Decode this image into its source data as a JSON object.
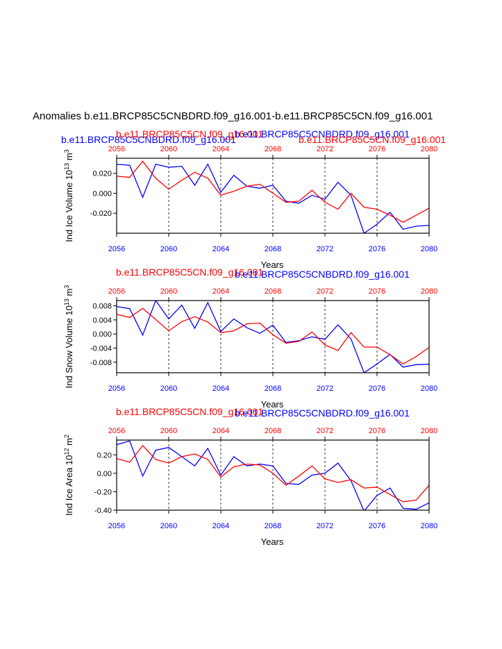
{
  "main_title": "Anomalies b.e11.BRCP85C5CNBDRD.f09_g16.001-b.e11.BRCP85C5CN.f09_g16.001",
  "colors": {
    "series_a": "#0000ff",
    "series_b": "#ff0000",
    "axis": "#000000",
    "grid": "#000000"
  },
  "chart_data": [
    {
      "type": "line",
      "panel_labels": {
        "left": "b.e11.BRCP85C5CNBDRD.f09_g16.001",
        "mid": "b.e11.BRCP85C5CN.f09_g16.001",
        "mid_overlay": "b.e11.BRCP85C5CNBDRD.f09_g16.001",
        "right": "b.e11.BRCP85C5CN.f09_g16.001"
      },
      "ylabel": {
        "base": "Ind Ice Volume 10",
        "exp": "13",
        "unit": " m",
        "unit_exp": "3"
      },
      "xlabel": "Years",
      "xlim": [
        2056,
        2080
      ],
      "ylim": [
        -0.04,
        0.035
      ],
      "xticks": [
        2056,
        2060,
        2064,
        2068,
        2072,
        2076,
        2080
      ],
      "grid_x": [
        2060,
        2064,
        2068,
        2072,
        2076
      ],
      "yticks": [
        -0.02,
        0.0,
        0.02
      ],
      "ytick_labels": [
        "-0.020",
        "0.000",
        "0.020"
      ],
      "x": [
        2056,
        2057,
        2058,
        2059,
        2060,
        2061,
        2062,
        2063,
        2064,
        2065,
        2066,
        2067,
        2068,
        2069,
        2070,
        2071,
        2072,
        2073,
        2074,
        2075,
        2076,
        2077,
        2078,
        2079,
        2080
      ],
      "series": [
        {
          "name": "b.e11.BRCP85C5CNBDRD.f09_g16.001",
          "color": "#0000ff",
          "values": [
            0.029,
            0.028,
            -0.004,
            0.029,
            0.026,
            0.027,
            0.008,
            0.029,
            0.001,
            0.018,
            0.007,
            0.005,
            0.008,
            -0.008,
            -0.01,
            -0.002,
            -0.006,
            0.011,
            -0.002,
            -0.04,
            -0.031,
            -0.019,
            -0.036,
            -0.033,
            -0.032
          ]
        },
        {
          "name": "b.e11.BRCP85C5CN.f09_g16.001",
          "color": "#ff0000",
          "values": [
            0.017,
            0.016,
            0.032,
            0.015,
            0.004,
            0.013,
            0.021,
            0.015,
            -0.002,
            0.002,
            0.007,
            0.009,
            0.0,
            -0.009,
            -0.008,
            0.003,
            -0.009,
            -0.016,
            0.0,
            -0.014,
            -0.016,
            -0.022,
            -0.029,
            -0.022,
            -0.015
          ]
        }
      ]
    },
    {
      "type": "line",
      "panel_labels": {
        "left": "",
        "mid": "b.e11.BRCP85C5CN.f09_g16.001",
        "mid_overlay": "b.e11.BRCP85C5CNBDRD.f09_g16.001",
        "right": ""
      },
      "ylabel": {
        "base": "Ind Snow Volume 10",
        "exp": "13",
        "unit": " m",
        "unit_exp": "3"
      },
      "xlabel": "Years",
      "xlim": [
        2056,
        2080
      ],
      "ylim": [
        -0.011,
        0.0095
      ],
      "xticks": [
        2056,
        2060,
        2064,
        2068,
        2072,
        2076,
        2080
      ],
      "grid_x": [
        2060,
        2064,
        2068,
        2072,
        2076
      ],
      "yticks": [
        -0.008,
        -0.004,
        0.0,
        0.004,
        0.008
      ],
      "ytick_labels": [
        "-0.008",
        "-0.004",
        "0.000",
        "0.004",
        "0.008"
      ],
      "x": [
        2056,
        2057,
        2058,
        2059,
        2060,
        2061,
        2062,
        2063,
        2064,
        2065,
        2066,
        2067,
        2068,
        2069,
        2070,
        2071,
        2072,
        2073,
        2074,
        2075,
        2076,
        2077,
        2078,
        2079,
        2080
      ],
      "series": [
        {
          "name": "b.e11.BRCP85C5CNBDRD.f09_g16.001",
          "color": "#0000ff",
          "values": [
            0.0078,
            0.0072,
            -0.0003,
            0.0095,
            0.0043,
            0.0082,
            0.0016,
            0.0089,
            0.0007,
            0.0043,
            0.0018,
            0.0002,
            0.0025,
            -0.0024,
            -0.0019,
            -0.0008,
            -0.0015,
            0.0026,
            -0.0014,
            -0.011,
            -0.0085,
            -0.0058,
            -0.0094,
            -0.0087,
            -0.0086
          ]
        },
        {
          "name": "b.e11.BRCP85C5CN.f09_g16.001",
          "color": "#ff0000",
          "values": [
            0.0056,
            0.0047,
            0.0073,
            0.0041,
            0.0009,
            0.0035,
            0.0049,
            0.0034,
            0.0004,
            0.0009,
            0.0029,
            0.0031,
            -0.0002,
            -0.0026,
            -0.0021,
            0.0006,
            -0.0031,
            -0.0047,
            0.0004,
            -0.0037,
            -0.0037,
            -0.0059,
            -0.0085,
            -0.0064,
            -0.0038
          ]
        }
      ]
    },
    {
      "type": "line",
      "panel_labels": {
        "left": "",
        "mid": "b.e11.BRCP85C5CN.f09_g16.001",
        "mid_overlay": "b.e11.BRCP85C5CNBDRD.f09_g16.001",
        "right": ""
      },
      "ylabel": {
        "base": "Ind Ice Area 10",
        "exp": "12",
        "unit": " m",
        "unit_exp": "2"
      },
      "xlabel": "Years",
      "xlim": [
        2056,
        2080
      ],
      "ylim": [
        -0.4,
        0.36
      ],
      "xticks": [
        2056,
        2060,
        2064,
        2068,
        2072,
        2076,
        2080
      ],
      "grid_x": [
        2060,
        2064,
        2068,
        2072,
        2076
      ],
      "yticks": [
        -0.4,
        -0.2,
        0.0,
        0.2
      ],
      "ytick_labels": [
        "-0.40",
        "-0.20",
        "0.00",
        "0.20"
      ],
      "x": [
        2056,
        2057,
        2058,
        2059,
        2060,
        2061,
        2062,
        2063,
        2064,
        2065,
        2066,
        2067,
        2068,
        2069,
        2070,
        2071,
        2072,
        2073,
        2074,
        2075,
        2076,
        2077,
        2078,
        2079,
        2080
      ],
      "series": [
        {
          "name": "b.e11.BRCP85C5CNBDRD.f09_g16.001",
          "color": "#0000ff",
          "values": [
            0.31,
            0.35,
            -0.03,
            0.25,
            0.28,
            0.18,
            0.08,
            0.27,
            -0.02,
            0.18,
            0.08,
            0.1,
            0.08,
            -0.11,
            -0.12,
            -0.02,
            0.0,
            0.11,
            -0.08,
            -0.41,
            -0.24,
            -0.16,
            -0.38,
            -0.39,
            -0.32
          ]
        },
        {
          "name": "b.e11.BRCP85C5CN.f09_g16.001",
          "color": "#ff0000",
          "values": [
            0.16,
            0.12,
            0.3,
            0.15,
            0.11,
            0.18,
            0.21,
            0.15,
            -0.04,
            0.07,
            0.1,
            0.09,
            0.0,
            -0.13,
            -0.03,
            0.08,
            -0.06,
            -0.1,
            -0.07,
            -0.16,
            -0.15,
            -0.23,
            -0.31,
            -0.29,
            -0.13
          ]
        }
      ]
    }
  ]
}
